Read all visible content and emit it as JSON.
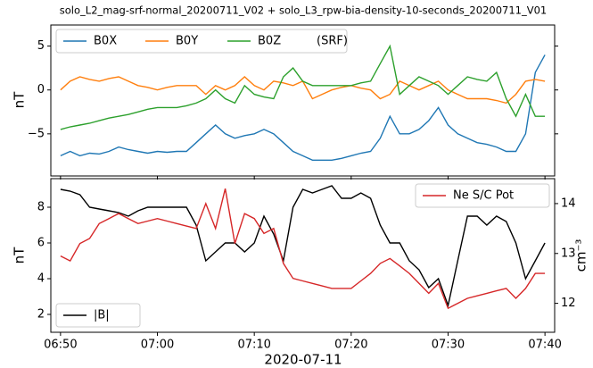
{
  "chart_data": [
    {
      "type": "line",
      "title": "solo_L2_mag-srf-normal_20200711_V02 + solo_L3_rpw-bia-density-10-seconds_20200711_V01",
      "ylabel": "nT",
      "legend": "upper left",
      "legend_note": "(SRF)",
      "xlim": [
        "06:49",
        "07:41"
      ],
      "ylim": [
        -9.8,
        7.4
      ],
      "yticks": [
        {
          "value": -5,
          "label": "−5"
        },
        0,
        5
      ],
      "x": [
        "06:50",
        "06:51",
        "06:52",
        "06:53",
        "06:54",
        "06:55",
        "06:56",
        "06:57",
        "06:58",
        "06:59",
        "07:00",
        "07:01",
        "07:02",
        "07:03",
        "07:04",
        "07:05",
        "07:06",
        "07:07",
        "07:08",
        "07:09",
        "07:10",
        "07:11",
        "07:12",
        "07:13",
        "07:14",
        "07:15",
        "07:16",
        "07:17",
        "07:18",
        "07:19",
        "07:20",
        "07:21",
        "07:22",
        "07:23",
        "07:24",
        "07:25",
        "07:26",
        "07:27",
        "07:28",
        "07:29",
        "07:30",
        "07:31",
        "07:32",
        "07:33",
        "07:34",
        "07:35",
        "07:36",
        "07:37",
        "07:38",
        "07:39",
        "07:40"
      ],
      "series": [
        {
          "name": "B0X",
          "color": "#1f77b4",
          "values": [
            -7.5,
            -7,
            -7.5,
            -7.2,
            -7.3,
            -7,
            -6.5,
            -6.8,
            -7,
            -7.2,
            -7,
            -7.1,
            -7,
            -7,
            -6,
            -5,
            -4,
            -5,
            -5.5,
            -5.2,
            -5,
            -4.5,
            -5,
            -6,
            -7,
            -7.5,
            -8,
            -8,
            -8,
            -7.8,
            -7.5,
            -7.2,
            -7,
            -5.5,
            -3,
            -5,
            -5,
            -4.5,
            -3.5,
            -2,
            -4,
            -5,
            -5.5,
            -6,
            -6.2,
            -6.5,
            -7,
            -7,
            -5,
            2,
            4
          ]
        },
        {
          "name": "B0Y",
          "color": "#ff7f0e",
          "values": [
            0,
            1,
            1.5,
            1.2,
            1,
            1.3,
            1.5,
            1,
            0.5,
            0.3,
            0,
            0.3,
            0.5,
            0.5,
            0.5,
            -0.5,
            0.5,
            0,
            0.5,
            1.5,
            0.5,
            0,
            1,
            0.8,
            0.5,
            1,
            -1,
            -0.5,
            0,
            0.3,
            0.5,
            0.2,
            0,
            -1,
            -0.5,
            1,
            0.5,
            0,
            0.5,
            1,
            0,
            -0.5,
            -1,
            -1,
            -1,
            -1.2,
            -1.5,
            -0.5,
            1,
            1.2,
            1
          ]
        },
        {
          "name": "B0Z",
          "color": "#2ca02c",
          "values": [
            -4.5,
            -4.2,
            -4,
            -3.8,
            -3.5,
            -3.2,
            -3,
            -2.8,
            -2.5,
            -2.2,
            -2,
            -2,
            -2,
            -1.8,
            -1.5,
            -1,
            0,
            -1,
            -1.5,
            0.5,
            -0.5,
            -0.8,
            -1,
            1.5,
            2.5,
            1,
            0.5,
            0.5,
            0.5,
            0.5,
            0.5,
            0.8,
            1,
            3,
            5,
            -0.5,
            0.5,
            1.5,
            1,
            0.5,
            -0.5,
            0.5,
            1.5,
            1.2,
            1,
            2,
            -1,
            -3,
            -0.5,
            -3,
            -3
          ]
        }
      ]
    },
    {
      "type": "line",
      "ylabel": "nT",
      "y2label": "cm⁻³",
      "xlabel": "2020-07-11",
      "xlim": [
        "06:49",
        "07:41"
      ],
      "xticks": [
        "06:50",
        "07:00",
        "07:10",
        "07:20",
        "07:30",
        "07:40"
      ],
      "ylim": [
        1.0,
        9.6
      ],
      "yticks": [
        2,
        4,
        6,
        8
      ],
      "y2lim": [
        11.42,
        14.5
      ],
      "y2ticks": [
        12,
        13,
        14
      ],
      "x": [
        "06:50",
        "06:51",
        "06:52",
        "06:53",
        "06:54",
        "06:55",
        "06:56",
        "06:57",
        "06:58",
        "06:59",
        "07:00",
        "07:01",
        "07:02",
        "07:03",
        "07:04",
        "07:05",
        "07:06",
        "07:07",
        "07:08",
        "07:09",
        "07:10",
        "07:11",
        "07:12",
        "07:13",
        "07:14",
        "07:15",
        "07:16",
        "07:17",
        "07:18",
        "07:19",
        "07:20",
        "07:21",
        "07:22",
        "07:23",
        "07:24",
        "07:25",
        "07:26",
        "07:27",
        "07:28",
        "07:29",
        "07:30",
        "07:31",
        "07:32",
        "07:33",
        "07:34",
        "07:35",
        "07:36",
        "07:37",
        "07:38",
        "07:39",
        "07:40"
      ],
      "series": [
        {
          "name": "|B|",
          "color": "#000000",
          "legend": "lower left",
          "values": [
            9,
            8.9,
            8.7,
            8,
            7.9,
            7.8,
            7.7,
            7.5,
            7.8,
            8,
            8,
            8,
            8,
            8,
            7,
            5,
            5.5,
            6,
            6,
            5.5,
            6,
            7.5,
            6.5,
            5,
            8,
            9,
            8.8,
            9,
            9.2,
            8.5,
            8.5,
            8.8,
            8.5,
            7,
            6,
            6,
            5,
            4.5,
            3.5,
            4,
            2.5,
            5,
            7.5,
            7.5,
            7,
            7.5,
            7.2,
            6,
            4,
            5,
            6
          ]
        },
        {
          "name": "Ne S/C Pot",
          "color": "#d62728",
          "axis": "y2",
          "legend": "upper right",
          "values": [
            12.95,
            12.85,
            13.2,
            13.3,
            13.6,
            13.7,
            13.8,
            13.7,
            13.6,
            13.65,
            13.7,
            13.65,
            13.6,
            13.55,
            13.5,
            14.0,
            13.5,
            14.3,
            13.2,
            13.8,
            13.7,
            13.4,
            13.5,
            12.8,
            12.5,
            12.45,
            12.4,
            12.35,
            12.3,
            12.3,
            12.3,
            12.45,
            12.6,
            12.8,
            12.9,
            12.75,
            12.6,
            12.4,
            12.2,
            12.4,
            11.9,
            12.0,
            12.1,
            12.15,
            12.2,
            12.25,
            12.3,
            12.1,
            12.3,
            12.6,
            12.6
          ]
        }
      ]
    }
  ]
}
